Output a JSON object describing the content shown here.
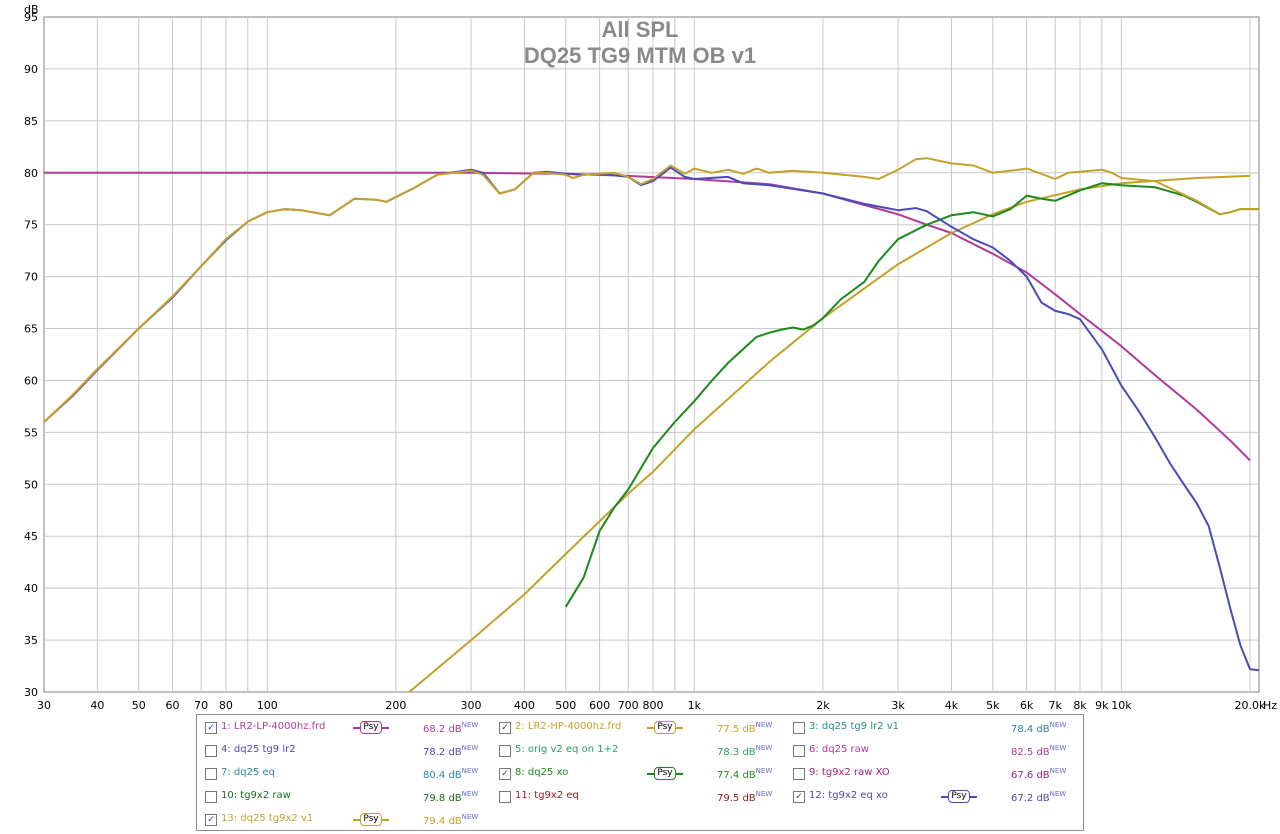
{
  "chart_data": {
    "type": "line",
    "title": "All SPL",
    "subtitle": "DQ25 TG9 MTM OB v1",
    "ylabel": "dB",
    "xlabel": "Hz",
    "xscale": "log",
    "xlim": [
      30,
      21000
    ],
    "ylim": [
      30,
      95
    ],
    "grid": true,
    "yticks": [
      "30",
      "35",
      "40",
      "45",
      "50",
      "55",
      "60",
      "65",
      "70",
      "75",
      "80",
      "85",
      "90",
      "95"
    ],
    "xtick_labels": [
      {
        "f": 30,
        "label": "30"
      },
      {
        "f": 40,
        "label": "40"
      },
      {
        "f": 50,
        "label": "50"
      },
      {
        "f": 60,
        "label": "60"
      },
      {
        "f": 70,
        "label": "70"
      },
      {
        "f": 80,
        "label": "80"
      },
      {
        "f": 100,
        "label": "100"
      },
      {
        "f": 200,
        "label": "200"
      },
      {
        "f": 300,
        "label": "300"
      },
      {
        "f": 400,
        "label": "400"
      },
      {
        "f": 500,
        "label": "500"
      },
      {
        "f": 600,
        "label": "600"
      },
      {
        "f": 700,
        "label": "700"
      },
      {
        "f": 800,
        "label": "800"
      },
      {
        "f": 1000,
        "label": "1k"
      },
      {
        "f": 2000,
        "label": "2k"
      },
      {
        "f": 3000,
        "label": "3k"
      },
      {
        "f": 4000,
        "label": "4k"
      },
      {
        "f": 5000,
        "label": "5k"
      },
      {
        "f": 6000,
        "label": "6k"
      },
      {
        "f": 7000,
        "label": "7k"
      },
      {
        "f": 8000,
        "label": "8k"
      },
      {
        "f": 9000,
        "label": "9k"
      },
      {
        "f": 10000,
        "label": "10k"
      },
      {
        "f": 20000,
        "label": "20.0k"
      }
    ],
    "series": [
      {
        "name": "1: LR2-LP-4000hz.frd",
        "color": "#b03a9a",
        "points": [
          [
            30,
            80
          ],
          [
            100,
            80
          ],
          [
            300,
            80
          ],
          [
            500,
            79.9
          ],
          [
            700,
            79.7
          ],
          [
            1000,
            79.4
          ],
          [
            1500,
            78.9
          ],
          [
            2000,
            78
          ],
          [
            2500,
            76.9
          ],
          [
            3000,
            76
          ],
          [
            3500,
            75
          ],
          [
            4000,
            74.2
          ],
          [
            5000,
            72.2
          ],
          [
            6000,
            70.4
          ],
          [
            7000,
            68.3
          ],
          [
            8000,
            66.4
          ],
          [
            10000,
            63.3
          ],
          [
            12000,
            60.5
          ],
          [
            15000,
            57.2
          ],
          [
            18000,
            54.2
          ],
          [
            20000,
            52.3
          ]
        ]
      },
      {
        "name": "2: LR2-HP-4000hz.frd",
        "color": "#c4a12a",
        "points": [
          [
            215,
            30
          ],
          [
            300,
            35
          ],
          [
            400,
            39.4
          ],
          [
            500,
            43.3
          ],
          [
            700,
            49.1
          ],
          [
            800,
            51.2
          ],
          [
            1000,
            55.3
          ],
          [
            1500,
            61.8
          ],
          [
            2000,
            66
          ],
          [
            3000,
            71.2
          ],
          [
            4000,
            74.2
          ],
          [
            5000,
            76
          ],
          [
            6000,
            77.2
          ],
          [
            8000,
            78.4
          ],
          [
            10000,
            79
          ],
          [
            15000,
            79.5
          ],
          [
            20000,
            79.7
          ]
        ]
      },
      {
        "name": "8: dq25 xo",
        "color": "#1a8a1a",
        "points": [
          [
            500,
            38.2
          ],
          [
            550,
            41
          ],
          [
            600,
            45.5
          ],
          [
            650,
            47.8
          ],
          [
            700,
            49.5
          ],
          [
            800,
            53.5
          ],
          [
            900,
            56
          ],
          [
            1000,
            58
          ],
          [
            1100,
            60
          ],
          [
            1200,
            61.7
          ],
          [
            1300,
            63
          ],
          [
            1400,
            64.2
          ],
          [
            1500,
            64.6
          ],
          [
            1600,
            64.9
          ],
          [
            1700,
            65.1
          ],
          [
            1800,
            64.9
          ],
          [
            1900,
            65.3
          ],
          [
            2000,
            66
          ],
          [
            2200,
            67.8
          ],
          [
            2500,
            69.5
          ],
          [
            2700,
            71.5
          ],
          [
            3000,
            73.6
          ],
          [
            3500,
            75
          ],
          [
            4000,
            75.9
          ],
          [
            4500,
            76.2
          ],
          [
            5000,
            75.8
          ],
          [
            5500,
            76.5
          ],
          [
            6000,
            77.8
          ],
          [
            6500,
            77.5
          ],
          [
            7000,
            77.3
          ],
          [
            8000,
            78.3
          ],
          [
            9000,
            79
          ],
          [
            10000,
            78.8
          ],
          [
            12000,
            78.6
          ],
          [
            14000,
            77.8
          ],
          [
            15000,
            77.2
          ],
          [
            17000,
            76
          ],
          [
            18000,
            76.2
          ],
          [
            19000,
            76.5
          ],
          [
            21000,
            76.5
          ]
        ]
      },
      {
        "name": "12: tg9x2 eq xo",
        "color": "#4b4bb8",
        "points": [
          [
            30,
            56
          ],
          [
            35,
            58.5
          ],
          [
            40,
            61
          ],
          [
            50,
            65
          ],
          [
            60,
            68
          ],
          [
            70,
            71
          ],
          [
            80,
            73.5
          ],
          [
            90,
            75.3
          ],
          [
            100,
            76.2
          ],
          [
            110,
            76.5
          ],
          [
            120,
            76.4
          ],
          [
            140,
            75.9
          ],
          [
            160,
            77.5
          ],
          [
            180,
            77.4
          ],
          [
            190,
            77.2
          ],
          [
            220,
            78.5
          ],
          [
            250,
            79.8
          ],
          [
            300,
            80.3
          ],
          [
            320,
            80
          ],
          [
            350,
            78
          ],
          [
            380,
            78.4
          ],
          [
            420,
            80
          ],
          [
            450,
            80.1
          ],
          [
            500,
            79.9
          ],
          [
            550,
            79.8
          ],
          [
            600,
            79.9
          ],
          [
            700,
            79.6
          ],
          [
            750,
            78.8
          ],
          [
            800,
            79.2
          ],
          [
            880,
            80.5
          ],
          [
            950,
            79.6
          ],
          [
            1000,
            79.4
          ],
          [
            1200,
            79.6
          ],
          [
            1300,
            79
          ],
          [
            1500,
            78.8
          ],
          [
            2000,
            78
          ],
          [
            2500,
            77
          ],
          [
            3000,
            76.4
          ],
          [
            3300,
            76.6
          ],
          [
            3500,
            76.3
          ],
          [
            4000,
            74.8
          ],
          [
            4500,
            73.6
          ],
          [
            5000,
            72.8
          ],
          [
            5500,
            71.5
          ],
          [
            6000,
            70
          ],
          [
            6500,
            67.5
          ],
          [
            7000,
            66.7
          ],
          [
            7500,
            66.4
          ],
          [
            8000,
            65.9
          ],
          [
            9000,
            63
          ],
          [
            10000,
            59.5
          ],
          [
            11000,
            57
          ],
          [
            12000,
            54.5
          ],
          [
            13000,
            52
          ],
          [
            14000,
            50
          ],
          [
            15000,
            48.2
          ],
          [
            16000,
            46
          ],
          [
            17000,
            42
          ],
          [
            18000,
            38
          ],
          [
            19000,
            34.5
          ],
          [
            20000,
            32.2
          ],
          [
            21000,
            32.1
          ]
        ]
      },
      {
        "name": "13: dq25 tg9x2 v1",
        "color": "#c4a12a",
        "points": [
          [
            30,
            56
          ],
          [
            35,
            58.6
          ],
          [
            40,
            61.1
          ],
          [
            50,
            65
          ],
          [
            60,
            68.1
          ],
          [
            70,
            71
          ],
          [
            80,
            73.6
          ],
          [
            90,
            75.3
          ],
          [
            100,
            76.2
          ],
          [
            110,
            76.5
          ],
          [
            120,
            76.4
          ],
          [
            140,
            75.9
          ],
          [
            160,
            77.5
          ],
          [
            180,
            77.4
          ],
          [
            190,
            77.2
          ],
          [
            220,
            78.5
          ],
          [
            250,
            79.8
          ],
          [
            300,
            80.2
          ],
          [
            320,
            79.8
          ],
          [
            350,
            78
          ],
          [
            380,
            78.4
          ],
          [
            420,
            80
          ],
          [
            450,
            80
          ],
          [
            500,
            79.8
          ],
          [
            520,
            79.5
          ],
          [
            550,
            79.8
          ],
          [
            600,
            79.9
          ],
          [
            650,
            80
          ],
          [
            700,
            79.6
          ],
          [
            750,
            78.9
          ],
          [
            800,
            79.4
          ],
          [
            880,
            80.7
          ],
          [
            950,
            79.9
          ],
          [
            1000,
            80.4
          ],
          [
            1100,
            80
          ],
          [
            1200,
            80.3
          ],
          [
            1300,
            79.9
          ],
          [
            1400,
            80.4
          ],
          [
            1500,
            80
          ],
          [
            1700,
            80.2
          ],
          [
            2000,
            80
          ],
          [
            2500,
            79.6
          ],
          [
            2700,
            79.4
          ],
          [
            3000,
            80.3
          ],
          [
            3300,
            81.3
          ],
          [
            3500,
            81.4
          ],
          [
            4000,
            80.9
          ],
          [
            4500,
            80.7
          ],
          [
            5000,
            80
          ],
          [
            5500,
            80.2
          ],
          [
            6000,
            80.4
          ],
          [
            6500,
            79.9
          ],
          [
            7000,
            79.4
          ],
          [
            7500,
            80
          ],
          [
            8000,
            80.1
          ],
          [
            9000,
            80.3
          ],
          [
            9500,
            80
          ],
          [
            10000,
            79.5
          ],
          [
            12000,
            79.2
          ],
          [
            14000,
            77.9
          ],
          [
            15000,
            77.3
          ],
          [
            17000,
            76
          ],
          [
            18000,
            76.2
          ],
          [
            19000,
            76.5
          ],
          [
            21000,
            76.5
          ]
        ]
      }
    ]
  },
  "legend": {
    "items": [
      {
        "label": "1: LR2-LP-4000hz.frd",
        "value": "68.2 dB",
        "checked": true,
        "psy": "Psy",
        "color": "#b03a9a",
        "valcolor": "#b03a9a"
      },
      {
        "label": "2: LR2-HP-4000hz.frd",
        "value": "77.5 dB",
        "checked": true,
        "psy": "Psy",
        "color": "#c4a12a",
        "valcolor": "#c4a12a"
      },
      {
        "label": "3: dq25 tg9 lr2 v1",
        "value": "78.4 dB",
        "checked": false,
        "psy": "",
        "color": "#2a8a8a",
        "valcolor": "#2a8a8a"
      },
      {
        "label": "4: dq25 tg9 lr2",
        "value": "78.2 dB",
        "checked": false,
        "psy": "",
        "color": "#4b4bb8",
        "valcolor": "#4b4bb8"
      },
      {
        "label": "5: orig v2 eq on 1+2",
        "value": "78.3 dB",
        "checked": false,
        "psy": "",
        "color": "#2aa060",
        "valcolor": "#2aa060"
      },
      {
        "label": "6: dq25 raw",
        "value": "82.5 dB",
        "checked": false,
        "psy": "",
        "color": "#b03a9a",
        "valcolor": "#b03a9a"
      },
      {
        "label": "7: dq25 eq",
        "value": "80.4 dB",
        "checked": false,
        "psy": "",
        "color": "#2a8aa0",
        "valcolor": "#2a8aa0"
      },
      {
        "label": "8: dq25 xo",
        "value": "77.4 dB",
        "checked": true,
        "psy": "Psy",
        "color": "#1a8a1a",
        "valcolor": "#1a8a1a"
      },
      {
        "label": "9: tg9x2 raw XO",
        "value": "67.6 dB",
        "checked": false,
        "psy": "",
        "color": "#a0207a",
        "valcolor": "#a0207a"
      },
      {
        "label": "10: tg9x2 raw",
        "value": "79.8 dB",
        "checked": false,
        "psy": "",
        "color": "#1a6a1a",
        "valcolor": "#1a6a1a"
      },
      {
        "label": "11: tg9x2 eq",
        "value": "79.5 dB",
        "checked": false,
        "psy": "",
        "color": "#8a1a1a",
        "valcolor": "#8a1a1a"
      },
      {
        "label": "12: tg9x2 eq xo",
        "value": "67.2 dB",
        "checked": true,
        "psy": "Psy",
        "color": "#4b4bb8",
        "valcolor": "#4b4bb8"
      },
      {
        "label": "13: dq25 tg9x2 v1",
        "value": "79.4 dB",
        "checked": true,
        "psy": "Psy",
        "color": "#c4a12a",
        "valcolor": "#c4a12a"
      }
    ],
    "new_tag": "NEW"
  }
}
